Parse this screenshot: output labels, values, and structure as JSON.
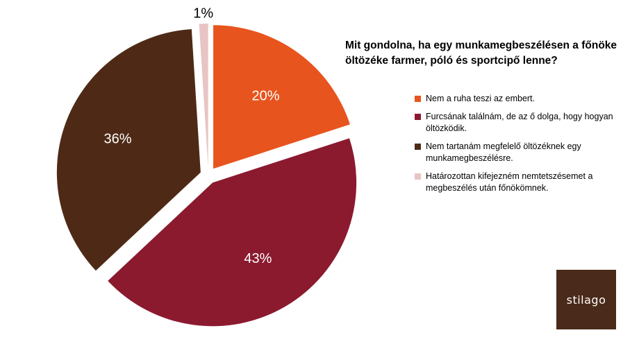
{
  "chart_data": {
    "type": "pie",
    "title": "Mit gondolna, ha egy munkamegbeszélésen a főnöke\nöltözéke farmer, póló és sportcipő lenne?",
    "legend_position": "right",
    "slices": [
      {
        "label": "Nem a ruha teszi az embert.",
        "value": 20,
        "display": "20%",
        "color": "#E8541E",
        "label_color": "#ffffff"
      },
      {
        "label": "Furcsának találnám, de az ő dolga, hogy hogyan öltözködik.",
        "value": 43,
        "display": "43%",
        "color": "#8B1A2F",
        "label_color": "#ffffff"
      },
      {
        "label": "Nem tartanám megfelelő öltözéknek egy munkamegbeszélésre.",
        "value": 36,
        "display": "36%",
        "color": "#4E2A16",
        "label_color": "#ffffff"
      },
      {
        "label": "Határozottan kifejezném nemtetszésemet a megbeszélés után főnökömnek.",
        "value": 1,
        "display": "1%",
        "color": "#E8C4C4",
        "label_color": "#000000"
      }
    ]
  },
  "logo": {
    "text": "stilago"
  }
}
